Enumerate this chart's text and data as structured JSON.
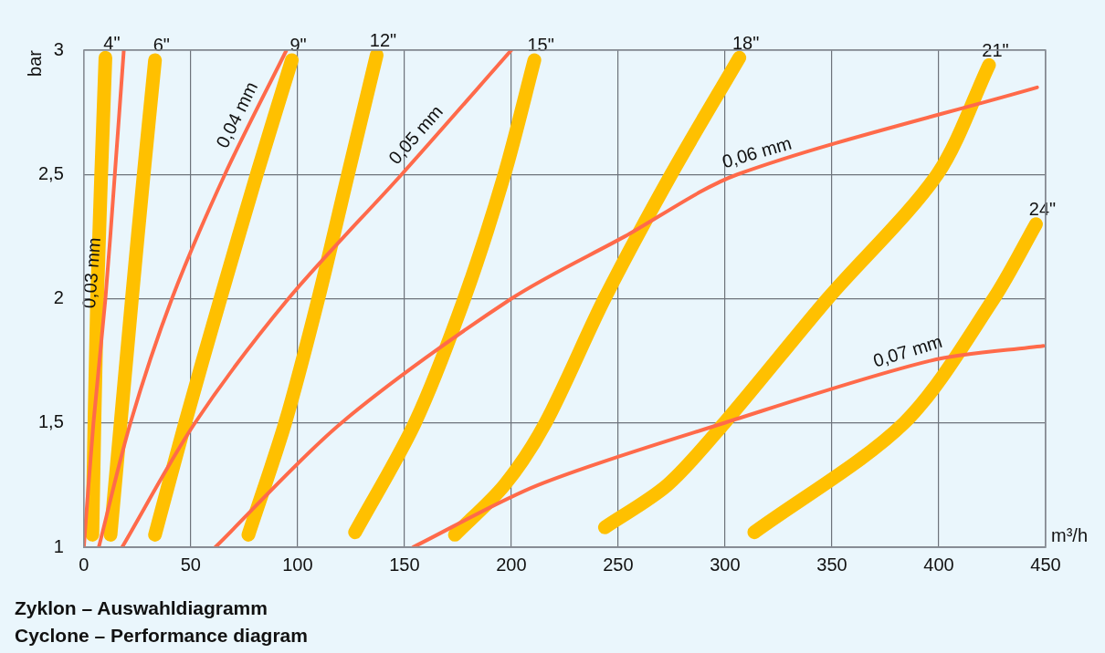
{
  "chart_data": {
    "type": "line",
    "title": "Zyklon – Auswahldiagramm",
    "subtitle": "Cyclone – Performance diagram",
    "xlabel": "m³/h",
    "ylabel": "bar",
    "xlim": [
      0,
      450
    ],
    "xticks": [
      0,
      50,
      100,
      150,
      200,
      250,
      300,
      350,
      400,
      450
    ],
    "ylim": [
      1,
      3
    ],
    "yticks": [
      1,
      {
        "value": 1.5,
        "label": "1,5"
      },
      2,
      {
        "value": 2.5,
        "label": "2,5"
      },
      3
    ],
    "grid": true,
    "legend": false,
    "marker": "none",
    "line_style": "solid",
    "series": [
      {
        "name": "4\"",
        "color": "#ffc000",
        "x": [
          4,
          6.2,
          10.1
        ],
        "values": [
          1.05,
          2,
          2.97
        ]
      },
      {
        "name": "6\"",
        "color": "#ffc000",
        "x": [
          12.5,
          22.5,
          28,
          33.3
        ],
        "values": [
          1.05,
          2,
          2.5,
          2.96
        ]
      },
      {
        "name": "9\"",
        "color": "#ffc000",
        "x": [
          33.3,
          47.4,
          63.9,
          80.9,
          97.3
        ],
        "values": [
          1.05,
          1.5,
          2,
          2.5,
          2.96
        ]
      },
      {
        "name": "12\"",
        "color": "#ffc000",
        "x": [
          77,
          94.2,
          109.7,
          123.6,
          137
        ],
        "values": [
          1.05,
          1.5,
          2,
          2.5,
          2.98
        ]
      },
      {
        "name": "15\"",
        "color": "#ffc000",
        "x": [
          126.9,
          154.9,
          178,
          196.8,
          210.8
        ],
        "values": [
          1.06,
          1.5,
          2,
          2.5,
          2.96
        ]
      },
      {
        "name": "18\"",
        "color": "#ffc000",
        "x": [
          173.6,
          196.8,
          216,
          243.6,
          274.8,
          306.7
        ],
        "values": [
          1.05,
          1.25,
          1.5,
          2,
          2.5,
          2.97
        ]
      },
      {
        "name": "21\"",
        "color": "#ffc000",
        "x": [
          243.8,
          273,
          299.7,
          348,
          399.3,
          423.5
        ],
        "values": [
          1.08,
          1.25,
          1.5,
          2,
          2.5,
          2.94
        ]
      },
      {
        "name": "24\"",
        "color": "#ffc000",
        "x": [
          313.7,
          383.8,
          425.7,
          445.5
        ],
        "values": [
          1.06,
          1.5,
          2,
          2.3
        ]
      },
      {
        "name": "0,03 mm",
        "color": "#ff6a4a",
        "x": [
          0,
          4.5,
          10.1,
          14.5,
          18.7
        ],
        "values": [
          1,
          1.5,
          2,
          2.5,
          3
        ]
      },
      {
        "name": "0,04 mm",
        "color": "#ff6a4a",
        "x": [
          7,
          21.8,
          41.2,
          66,
          94.8
        ],
        "values": [
          1,
          1.5,
          2,
          2.5,
          3
        ]
      },
      {
        "name": "0,05 mm",
        "color": "#ff6a4a",
        "x": [
          17.9,
          52,
          95.7,
          148.7,
          200
        ],
        "values": [
          1,
          1.5,
          2,
          2.5,
          3
        ]
      },
      {
        "name": "0,06 mm",
        "color": "#ff6a4a",
        "x": [
          61.5,
          120.5,
          200,
          253,
          305.8,
          446
        ],
        "values": [
          1,
          1.5,
          2,
          2.25,
          2.5,
          2.85
        ]
      },
      {
        "name": "0,07 mm",
        "color": "#ff6a4a",
        "x": [
          154,
          212.5,
          299.7,
          396,
          449
        ],
        "values": [
          1,
          1.25,
          1.5,
          1.75,
          1.81
        ]
      }
    ]
  }
}
